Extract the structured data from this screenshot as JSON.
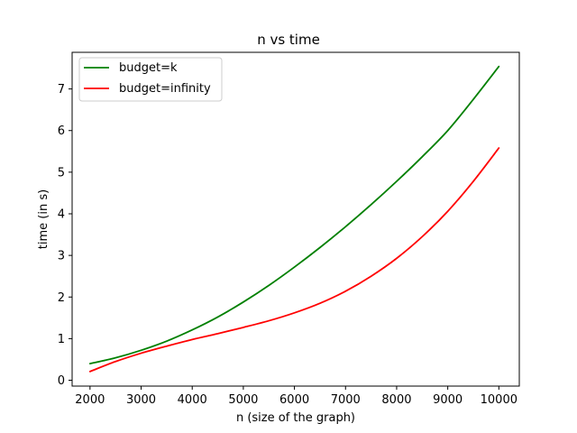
{
  "chart_data": {
    "type": "line",
    "title": "n vs time",
    "xlabel": "n (size of the graph)",
    "ylabel": "time (in s)",
    "xlim": [
      1650,
      10400
    ],
    "ylim": [
      -0.14,
      7.88
    ],
    "xticks": [
      2000,
      3000,
      4000,
      5000,
      6000,
      7000,
      8000,
      9000,
      10000
    ],
    "yticks": [
      0,
      1,
      2,
      3,
      4,
      5,
      6,
      7
    ],
    "grid": false,
    "legend_position": "top-left",
    "x": [
      2000,
      2500,
      3000,
      3500,
      4000,
      4500,
      5000,
      5500,
      6000,
      6500,
      7000,
      7500,
      8000,
      8500,
      9000,
      9500,
      10000
    ],
    "series": [
      {
        "name": "budget=k",
        "color": "#008000",
        "values": [
          0.4,
          0.54,
          0.72,
          0.94,
          1.21,
          1.52,
          1.88,
          2.28,
          2.72,
          3.19,
          3.69,
          4.22,
          4.78,
          5.37,
          6.0,
          6.75,
          7.54
        ]
      },
      {
        "name": "budget=infinity",
        "color": "#ff0000",
        "values": [
          0.21,
          0.45,
          0.65,
          0.82,
          0.98,
          1.12,
          1.27,
          1.43,
          1.62,
          1.85,
          2.14,
          2.5,
          2.93,
          3.45,
          4.06,
          4.78,
          5.58
        ]
      }
    ]
  }
}
